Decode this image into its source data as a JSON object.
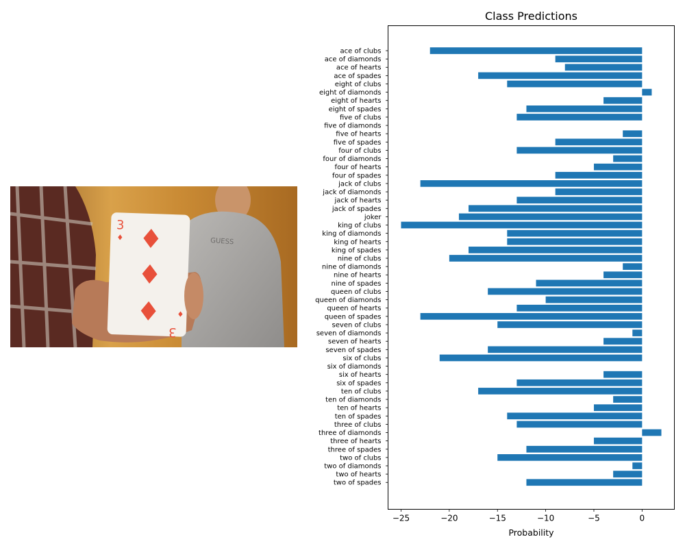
{
  "photo": {
    "description_icon": "playing-card-photo",
    "card_rank_glyph": "3",
    "card_suit_glyph": "♦",
    "sweatshirt_text": "GUESS",
    "colors": {
      "wall": "#c8902f",
      "card": "#f4f1ec",
      "diamond": "#e8503a",
      "hoodie": "#a8a6a4"
    }
  },
  "chart_data": {
    "type": "bar",
    "orientation": "horizontal",
    "title": "Class Predictions",
    "xlabel": "Probability",
    "ylabel": "",
    "xlim": [
      -26.35,
      3.35
    ],
    "xticks": [
      -25,
      -20,
      -15,
      -10,
      -5,
      0
    ],
    "bar_color": "#1f77b4",
    "grid": false,
    "categories": [
      "ace of clubs",
      "ace of diamonds",
      "ace of hearts",
      "ace of spades",
      "eight of clubs",
      "eight of diamonds",
      "eight of hearts",
      "eight of spades",
      "five of clubs",
      "five of diamonds",
      "five of hearts",
      "five of spades",
      "four of clubs",
      "four of diamonds",
      "four of hearts",
      "four of spades",
      "jack of clubs",
      "jack of diamonds",
      "jack of hearts",
      "jack of spades",
      "joker",
      "king of clubs",
      "king of diamonds",
      "king of hearts",
      "king of spades",
      "nine of clubs",
      "nine of diamonds",
      "nine of hearts",
      "nine of spades",
      "queen of clubs",
      "queen of diamonds",
      "queen of hearts",
      "queen of spades",
      "seven of clubs",
      "seven of diamonds",
      "seven of hearts",
      "seven of spades",
      "six of clubs",
      "six of diamonds",
      "six of hearts",
      "six of spades",
      "ten of clubs",
      "ten of diamonds",
      "ten of hearts",
      "ten of spades",
      "three of clubs",
      "three of diamonds",
      "three of hearts",
      "three of spades",
      "two of clubs",
      "two of diamonds",
      "two of hearts",
      "two of spades"
    ],
    "values": [
      -22,
      -9,
      -8,
      -17,
      -14,
      1,
      -4,
      -12,
      -13,
      0,
      -2,
      -9,
      -13,
      -3,
      -5,
      -9,
      -23,
      -9,
      -13,
      -18,
      -19,
      -25,
      -14,
      -14,
      -18,
      -20,
      -2,
      -4,
      -11,
      -16,
      -10,
      -13,
      -23,
      -15,
      -1,
      -4,
      -16,
      -21,
      0,
      -4,
      -13,
      -17,
      -3,
      -5,
      -14,
      -13,
      2,
      -5,
      -12,
      -15,
      -1,
      -3,
      -12
    ]
  }
}
